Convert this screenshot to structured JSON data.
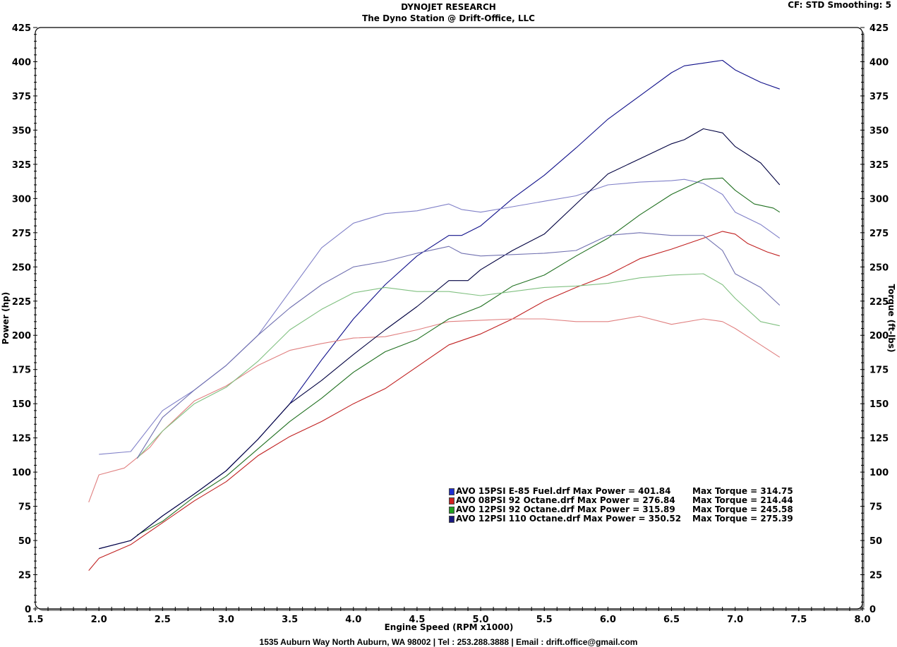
{
  "header": {
    "title": "DYNOJET RESEARCH",
    "subtitle": "The Dyno Station @ Drift-Office, LLC",
    "settings": "CF: STD  Smoothing: 5"
  },
  "footer": "1535 Auburn Way North Auburn, WA 98002 | Tel : 253.288.3888 | Email : drift.office@gmail.com",
  "legend": [
    {
      "color": "#1f2fd0",
      "label": "AVO 15PSI E-85 Fuel.drf Max Power = 401.84",
      "torque": "Max Torque = 314.75"
    },
    {
      "color": "#d02020",
      "label": "AVO 08PSI 92 Octane.drf Max Power = 276.84",
      "torque": "Max Torque = 214.44"
    },
    {
      "color": "#20a020",
      "label": "AVO 12PSI 92 Octane.drf Max Power = 315.89",
      "torque": "Max Torque = 245.58"
    },
    {
      "color": "#1a1a80",
      "label": "AVO 12PSI 110 Octane.drf Max Power = 350.52",
      "torque": "Max Torque = 275.39"
    }
  ],
  "chart_data": {
    "type": "line",
    "title": "DYNOJET RESEARCH",
    "subtitle": "The Dyno Station @ Drift-Office, LLC",
    "xlabel": "Engine Speed (RPM x1000)",
    "ylabel": "Power (hp)",
    "y2label": "Torque (ft-lbs)",
    "xlim": [
      1.5,
      8.0
    ],
    "ylim": [
      0,
      425
    ],
    "y2lim": [
      0,
      425
    ],
    "xticks": [
      "1.5",
      "2.0",
      "2.5",
      "3.0",
      "3.5",
      "4.0",
      "4.5",
      "5.0",
      "5.5",
      "6.0",
      "6.5",
      "7.0",
      "7.5",
      "8.0"
    ],
    "yticks": [
      "0",
      "25",
      "50",
      "75",
      "100",
      "125",
      "150",
      "175",
      "200",
      "225",
      "250",
      "275",
      "300",
      "325",
      "350",
      "375",
      "400",
      "425"
    ],
    "grid": true,
    "legend_position": "inside lower right",
    "series": [
      {
        "name": "AVO 15PSI E-85 Fuel Power (hp)",
        "color": "#10108a",
        "width": 1.1,
        "x": [
          2.0,
          2.25,
          2.5,
          2.75,
          3.0,
          3.25,
          3.5,
          3.75,
          4.0,
          4.25,
          4.5,
          4.75,
          4.85,
          5.0,
          5.25,
          5.5,
          5.75,
          6.0,
          6.25,
          6.5,
          6.6,
          6.75,
          6.9,
          7.0,
          7.2,
          7.35
        ],
        "values": [
          44,
          50,
          68,
          84,
          101,
          124,
          150,
          182,
          212,
          237,
          258,
          273,
          273,
          280,
          300,
          317,
          337,
          358,
          375,
          392,
          397,
          399,
          401,
          394,
          385,
          380
        ]
      },
      {
        "name": "AVO 15PSI E-85 Fuel Torque (ft-lbs)",
        "color": "#8080c8",
        "width": 1.1,
        "x": [
          2.0,
          2.25,
          2.4,
          2.5,
          2.75,
          3.0,
          3.25,
          3.5,
          3.75,
          4.0,
          4.25,
          4.5,
          4.75,
          4.85,
          5.0,
          5.25,
          5.5,
          5.75,
          6.0,
          6.25,
          6.5,
          6.6,
          6.75,
          6.9,
          7.0,
          7.2,
          7.35
        ],
        "values": [
          113,
          115,
          133,
          145,
          160,
          178,
          200,
          232,
          264,
          282,
          289,
          291,
          296,
          292,
          290,
          294,
          298,
          302,
          310,
          312,
          313,
          314,
          311,
          303,
          290,
          281,
          271
        ]
      },
      {
        "name": "AVO 08PSI 92 Octane Power (hp)",
        "color": "#c02020",
        "width": 1.1,
        "x": [
          1.92,
          2.0,
          2.25,
          2.5,
          2.75,
          3.0,
          3.25,
          3.5,
          3.75,
          4.0,
          4.25,
          4.5,
          4.75,
          5.0,
          5.25,
          5.5,
          5.75,
          6.0,
          6.25,
          6.5,
          6.75,
          6.9,
          7.0,
          7.1,
          7.25,
          7.35
        ],
        "values": [
          28,
          37,
          47,
          63,
          79,
          93,
          112,
          126,
          137,
          150,
          161,
          177,
          193,
          201,
          212,
          225,
          235,
          244,
          256,
          263,
          271,
          276,
          274,
          267,
          261,
          258
        ]
      },
      {
        "name": "AVO 08PSI 92 Octane Torque (ft-lbs)",
        "color": "#e08080",
        "width": 1.1,
        "x": [
          1.92,
          2.0,
          2.2,
          2.4,
          2.5,
          2.75,
          3.0,
          3.25,
          3.5,
          3.75,
          4.0,
          4.25,
          4.5,
          4.75,
          5.0,
          5.25,
          5.5,
          5.75,
          6.0,
          6.25,
          6.5,
          6.75,
          6.9,
          7.0,
          7.2,
          7.35
        ],
        "values": [
          78,
          98,
          103,
          118,
          130,
          152,
          163,
          178,
          189,
          194,
          198,
          199,
          204,
          210,
          211,
          212,
          212,
          210,
          210,
          214,
          208,
          212,
          210,
          205,
          193,
          184
        ]
      },
      {
        "name": "AVO 12PSI 92 Octane Power (hp)",
        "color": "#207020",
        "width": 1.1,
        "x": [
          2.3,
          2.5,
          2.75,
          3.0,
          3.25,
          3.5,
          3.75,
          4.0,
          4.25,
          4.5,
          4.75,
          5.0,
          5.25,
          5.5,
          5.75,
          6.0,
          6.25,
          6.5,
          6.75,
          6.9,
          7.0,
          7.15,
          7.3,
          7.35
        ],
        "values": [
          54,
          64,
          82,
          97,
          117,
          137,
          154,
          173,
          188,
          197,
          212,
          221,
          236,
          244,
          258,
          271,
          288,
          303,
          314,
          315,
          306,
          296,
          293,
          290
        ]
      },
      {
        "name": "AVO 12PSI 92 Octane Torque (ft-lbs)",
        "color": "#80c080",
        "width": 1.1,
        "x": [
          2.3,
          2.5,
          2.75,
          3.0,
          3.25,
          3.5,
          3.75,
          4.0,
          4.25,
          4.5,
          4.75,
          5.0,
          5.25,
          5.5,
          5.75,
          6.0,
          6.25,
          6.5,
          6.75,
          6.9,
          7.0,
          7.2,
          7.35
        ],
        "values": [
          110,
          130,
          150,
          162,
          181,
          204,
          219,
          231,
          235,
          232,
          232,
          229,
          232,
          235,
          236,
          238,
          242,
          244,
          245,
          237,
          227,
          210,
          207
        ]
      },
      {
        "name": "AVO 12PSI 110 Octane Power (hp)",
        "color": "#000040",
        "width": 1.1,
        "x": [
          2.0,
          2.25,
          2.5,
          2.75,
          3.0,
          3.25,
          3.5,
          3.75,
          4.0,
          4.25,
          4.5,
          4.75,
          4.9,
          5.0,
          5.25,
          5.5,
          5.75,
          6.0,
          6.25,
          6.5,
          6.6,
          6.75,
          6.9,
          7.0,
          7.2,
          7.35
        ],
        "values": [
          44,
          50,
          68,
          84,
          101,
          124,
          150,
          167,
          186,
          204,
          221,
          240,
          240,
          248,
          262,
          274,
          296,
          318,
          329,
          340,
          343,
          351,
          348,
          338,
          326,
          310
        ]
      },
      {
        "name": "AVO 12PSI 110 Octane Torque (ft-lbs)",
        "color": "#7070b0",
        "width": 1.1,
        "x": [
          2.3,
          2.5,
          2.75,
          3.0,
          3.25,
          3.5,
          3.75,
          4.0,
          4.25,
          4.5,
          4.75,
          4.85,
          5.0,
          5.25,
          5.5,
          5.75,
          6.0,
          6.25,
          6.5,
          6.75,
          6.9,
          7.0,
          7.2,
          7.35
        ],
        "values": [
          110,
          140,
          160,
          178,
          200,
          220,
          237,
          250,
          254,
          260,
          265,
          260,
          258,
          259,
          260,
          262,
          273,
          275,
          273,
          273,
          262,
          245,
          235,
          222
        ]
      }
    ]
  }
}
